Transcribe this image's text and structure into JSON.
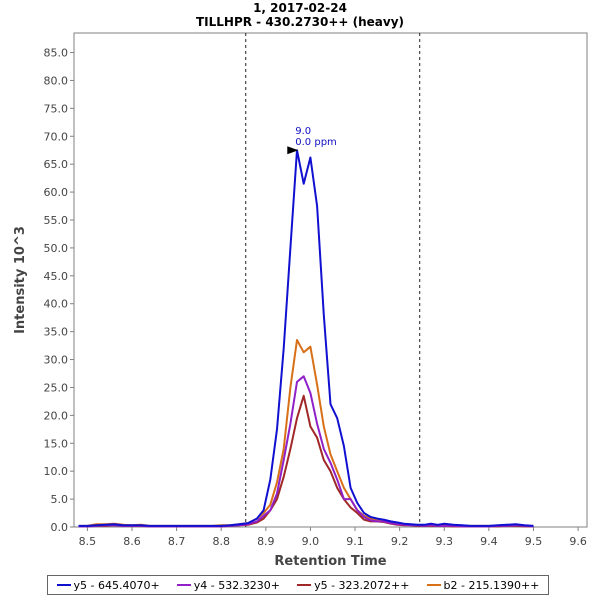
{
  "chart_data": {
    "type": "line",
    "title": "1, 2017-02-24",
    "subtitle": "TILLHPR - 430.2730++ (heavy)",
    "xlabel": "Retention Time",
    "ylabel": "Intensity 10^3",
    "xlim": [
      8.47,
      9.62
    ],
    "ylim": [
      0,
      88.5
    ],
    "xticks": [
      "8.5",
      "8.6",
      "8.7",
      "8.8",
      "8.9",
      "9.0",
      "9.1",
      "9.2",
      "9.3",
      "9.4",
      "9.5",
      "9.6"
    ],
    "yticks": [
      "0.0",
      "5.0",
      "10.0",
      "15.0",
      "20.0",
      "25.0",
      "30.0",
      "35.0",
      "40.0",
      "45.0",
      "50.0",
      "55.0",
      "60.0",
      "65.0",
      "70.0",
      "75.0",
      "80.0",
      "85.0"
    ],
    "boundaries": [
      8.855,
      9.245
    ],
    "annotation": {
      "x": 8.975,
      "y": 67.5,
      "line1": "9.0",
      "line2": "0.0 ppm"
    },
    "x": [
      8.48,
      8.5,
      8.52,
      8.54,
      8.56,
      8.58,
      8.6,
      8.62,
      8.64,
      8.66,
      8.68,
      8.7,
      8.72,
      8.74,
      8.76,
      8.78,
      8.8,
      8.82,
      8.84,
      8.86,
      8.88,
      8.895,
      8.91,
      8.925,
      8.94,
      8.955,
      8.97,
      8.985,
      9.0,
      9.015,
      9.03,
      9.045,
      9.06,
      9.075,
      9.09,
      9.105,
      9.12,
      9.135,
      9.15,
      9.165,
      9.18,
      9.195,
      9.21,
      9.225,
      9.24,
      9.255,
      9.27,
      9.285,
      9.3,
      9.32,
      9.34,
      9.36,
      9.38,
      9.4,
      9.42,
      9.44,
      9.46,
      9.48,
      9.5
    ],
    "series": [
      {
        "name": "y5 - 645.4070+",
        "color": "#1010d0",
        "values": [
          0.2,
          0.2,
          0.3,
          0.4,
          0.5,
          0.3,
          0.3,
          0.3,
          0.2,
          0.2,
          0.2,
          0.2,
          0.2,
          0.2,
          0.2,
          0.2,
          0.2,
          0.3,
          0.5,
          0.7,
          1.5,
          3.0,
          8.5,
          17.5,
          32.0,
          50.0,
          67.5,
          61.5,
          66.2,
          57.5,
          38.0,
          22.0,
          19.5,
          14.5,
          7.0,
          4.3,
          2.5,
          1.8,
          1.5,
          1.3,
          1.0,
          0.8,
          0.6,
          0.5,
          0.4,
          0.4,
          0.6,
          0.4,
          0.6,
          0.4,
          0.3,
          0.2,
          0.2,
          0.2,
          0.3,
          0.4,
          0.5,
          0.3,
          0.2
        ]
      },
      {
        "name": "y4 - 532.3230+",
        "color": "#9020c8",
        "values": [
          0.1,
          0.1,
          0.2,
          0.3,
          0.3,
          0.2,
          0.2,
          0.2,
          0.1,
          0.1,
          0.1,
          0.1,
          0.1,
          0.1,
          0.1,
          0.1,
          0.1,
          0.2,
          0.3,
          0.5,
          1.0,
          2.0,
          3.0,
          6.0,
          12.0,
          18.5,
          26.0,
          27.0,
          24.0,
          18.5,
          14.0,
          11.5,
          8.5,
          5.0,
          5.0,
          3.0,
          1.8,
          1.2,
          1.0,
          1.0,
          0.7,
          0.5,
          0.4,
          0.3,
          0.3,
          0.2,
          0.3,
          0.2,
          0.2,
          0.2,
          0.1,
          0.1,
          0.1,
          0.1,
          0.2,
          0.2,
          0.3,
          0.2,
          0.1
        ]
      },
      {
        "name": "y5 - 323.2072++",
        "color": "#a02828",
        "values": [
          0.1,
          0.1,
          0.2,
          0.2,
          0.3,
          0.2,
          0.2,
          0.2,
          0.1,
          0.1,
          0.1,
          0.1,
          0.1,
          0.1,
          0.1,
          0.1,
          0.1,
          0.2,
          0.3,
          0.4,
          0.8,
          1.5,
          3.0,
          5.0,
          9.0,
          14.0,
          19.5,
          23.5,
          18.0,
          16.0,
          12.0,
          10.0,
          7.0,
          5.0,
          3.5,
          2.5,
          1.3,
          1.0,
          1.0,
          0.9,
          0.6,
          0.4,
          0.3,
          0.3,
          0.2,
          0.2,
          0.2,
          0.2,
          0.2,
          0.1,
          0.1,
          0.1,
          0.1,
          0.1,
          0.1,
          0.2,
          0.2,
          0.1,
          0.1
        ]
      },
      {
        "name": "b2 - 215.1390++",
        "color": "#d87018",
        "values": [
          0.2,
          0.2,
          0.5,
          0.5,
          0.6,
          0.4,
          0.3,
          0.4,
          0.2,
          0.2,
          0.2,
          0.2,
          0.2,
          0.2,
          0.2,
          0.2,
          0.3,
          0.3,
          0.5,
          0.7,
          1.5,
          2.5,
          4.0,
          8.0,
          14.0,
          25.0,
          33.5,
          31.3,
          32.3,
          25.5,
          18.0,
          13.0,
          10.0,
          7.0,
          5.0,
          3.0,
          2.0,
          1.5,
          1.2,
          1.0,
          0.8,
          0.6,
          0.5,
          0.4,
          0.3,
          0.3,
          0.4,
          0.3,
          0.3,
          0.2,
          0.2,
          0.2,
          0.2,
          0.2,
          0.2,
          0.3,
          0.3,
          0.2,
          0.2
        ]
      }
    ]
  }
}
